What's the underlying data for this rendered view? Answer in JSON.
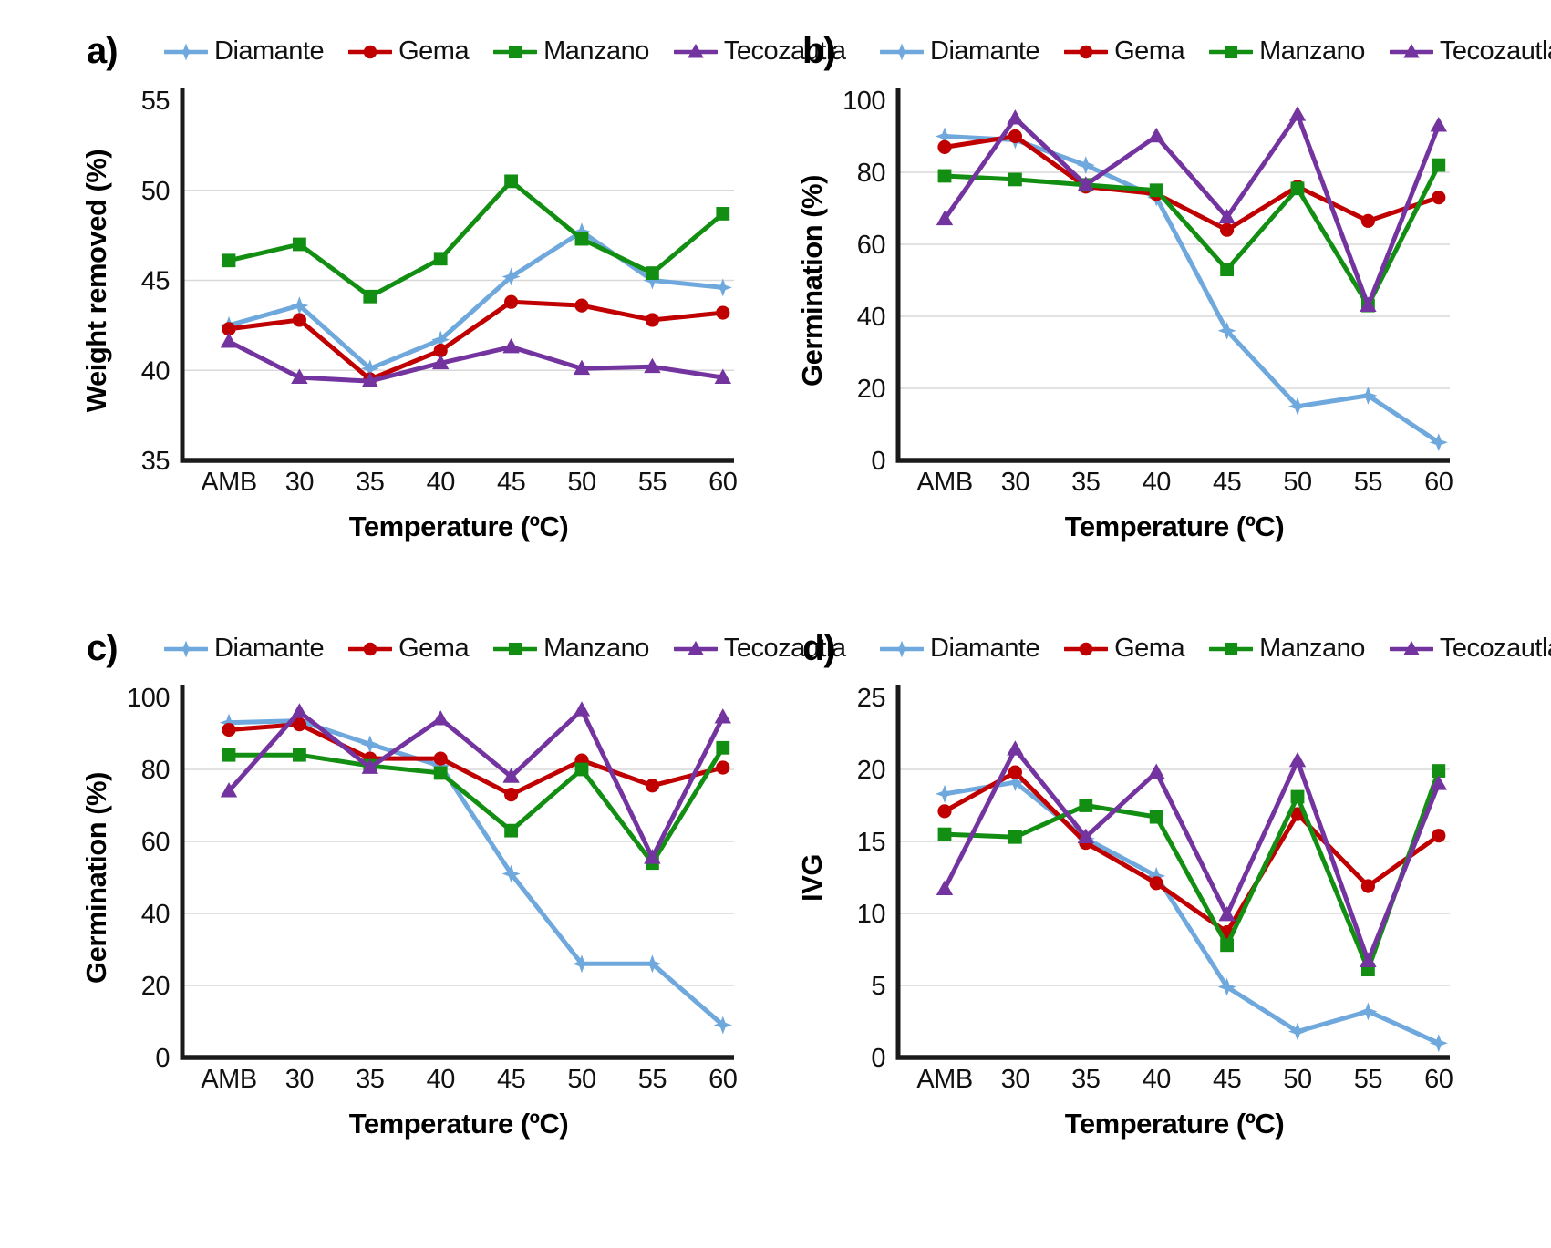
{
  "figure_title": "",
  "x_axis": {
    "label": "Temperature (ºC)",
    "categories": [
      "AMB",
      "30",
      "35",
      "40",
      "45",
      "50",
      "55",
      "60"
    ]
  },
  "legend": {
    "position": "top",
    "items": [
      {
        "label": "Diamante",
        "color": "#6FA8DC",
        "marker": "star4"
      },
      {
        "label": "Gema",
        "color": "#C00000",
        "marker": "circle"
      },
      {
        "label": "Manzano",
        "color": "#128F12",
        "marker": "square"
      },
      {
        "label": "Tecozautla",
        "color": "#7434A0",
        "marker": "triangle"
      }
    ]
  },
  "style": {
    "grid_color": "#d9d9d9",
    "axis_color": "#1a1a1a",
    "background": "#ffffff"
  },
  "chart_data": [
    {
      "type": "line",
      "panel_label": "a)",
      "xlabel": "Temperature (ºC)",
      "ylabel": "Weight removed (%)",
      "ylim": [
        35,
        55
      ],
      "ytick_step": 5,
      "grid": true,
      "legend_position": "top",
      "categories": [
        "AMB",
        "30",
        "35",
        "40",
        "45",
        "50",
        "55",
        "60"
      ],
      "series": [
        {
          "name": "Diamante",
          "values": [
            42.5,
            43.6,
            40.1,
            41.7,
            45.2,
            47.7,
            45.0,
            44.6
          ]
        },
        {
          "name": "Gema",
          "values": [
            42.3,
            42.8,
            39.5,
            41.1,
            43.8,
            43.6,
            42.8,
            43.2
          ]
        },
        {
          "name": "Manzano",
          "values": [
            46.1,
            47.0,
            44.1,
            46.2,
            50.5,
            47.3,
            45.4,
            48.7
          ]
        },
        {
          "name": "Tecozautla",
          "values": [
            41.6,
            39.6,
            39.4,
            40.4,
            41.3,
            40.1,
            40.2,
            39.6
          ]
        }
      ]
    },
    {
      "type": "line",
      "panel_label": "b)",
      "xlabel": "Temperature (ºC)",
      "ylabel": "Germination (%)",
      "ylim": [
        0,
        100
      ],
      "ytick_step": 20,
      "grid": true,
      "legend_position": "top",
      "categories": [
        "AMB",
        "30",
        "35",
        "40",
        "45",
        "50",
        "55",
        "60"
      ],
      "series": [
        {
          "name": "Diamante",
          "values": [
            90,
            89,
            82,
            73,
            36,
            15,
            18,
            5
          ]
        },
        {
          "name": "Gema",
          "values": [
            87,
            90,
            76,
            74,
            64,
            76,
            66.5,
            73
          ]
        },
        {
          "name": "Manzano",
          "values": [
            79,
            78,
            76.5,
            75,
            53,
            75.5,
            43,
            82
          ]
        },
        {
          "name": "Tecozautla",
          "values": [
            67,
            95,
            76.5,
            90,
            67.5,
            96,
            43,
            93
          ]
        }
      ]
    },
    {
      "type": "line",
      "panel_label": "c)",
      "xlabel": "Temperature (ºC)",
      "ylabel": "Germination (%)",
      "ylim": [
        0,
        100
      ],
      "ytick_step": 20,
      "grid": true,
      "legend_position": "top",
      "categories": [
        "AMB",
        "30",
        "35",
        "40",
        "45",
        "50",
        "55",
        "60"
      ],
      "series": [
        {
          "name": "Diamante",
          "values": [
            93,
            93.5,
            87,
            81,
            51,
            26,
            26,
            9
          ]
        },
        {
          "name": "Gema",
          "values": [
            91,
            92.5,
            83,
            83,
            73,
            82.5,
            75.5,
            80.5
          ]
        },
        {
          "name": "Manzano",
          "values": [
            84,
            84,
            81,
            79,
            63,
            80,
            54,
            86
          ]
        },
        {
          "name": "Tecozautla",
          "values": [
            74,
            96,
            80.5,
            94,
            78,
            96.5,
            55.5,
            94.5
          ]
        }
      ]
    },
    {
      "type": "line",
      "panel_label": "d)",
      "xlabel": "Temperature (ºC)",
      "ylabel": "IVG",
      "ylim": [
        0,
        25
      ],
      "ytick_step": 5,
      "grid": true,
      "legend_position": "top",
      "categories": [
        "AMB",
        "30",
        "35",
        "40",
        "45",
        "50",
        "55",
        "60"
      ],
      "series": [
        {
          "name": "Diamante",
          "values": [
            18.3,
            19.1,
            15.2,
            12.6,
            4.9,
            1.8,
            3.2,
            1.0
          ]
        },
        {
          "name": "Gema",
          "values": [
            17.1,
            19.8,
            14.9,
            12.1,
            8.7,
            16.9,
            11.9,
            15.4
          ]
        },
        {
          "name": "Manzano",
          "values": [
            15.5,
            15.3,
            17.5,
            16.7,
            7.8,
            18.1,
            6.1,
            19.9
          ]
        },
        {
          "name": "Tecozautla",
          "values": [
            11.7,
            21.4,
            15.3,
            19.8,
            9.9,
            20.6,
            6.7,
            19.0
          ]
        }
      ]
    }
  ]
}
